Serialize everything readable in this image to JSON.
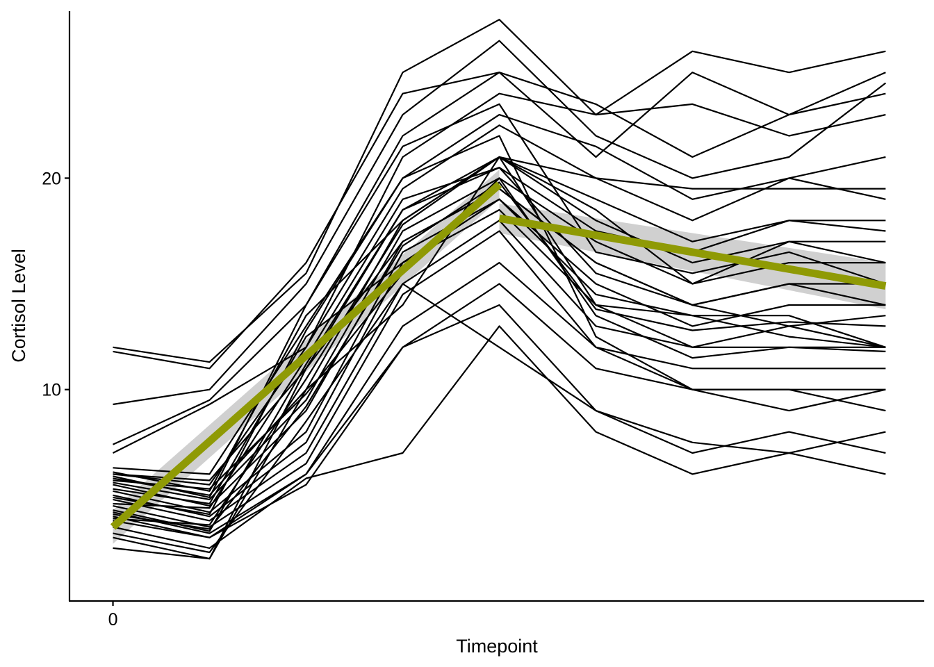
{
  "chart_data": {
    "type": "line",
    "title": "",
    "xlabel": "Timepoint",
    "ylabel": "Cortisol Level",
    "xlim": [
      -0.45,
      8.4
    ],
    "ylim": [
      0,
      27.9
    ],
    "x_ticks": [
      0
    ],
    "y_ticks": [
      10,
      20
    ],
    "x": [
      0,
      1,
      2,
      3,
      4,
      5,
      6,
      7,
      8
    ],
    "grid": false,
    "legend": "none",
    "colors": {
      "subject_lines": "#000000",
      "trend": "#8f9a05",
      "ci_band": "#c8c8c8"
    },
    "series": [
      {
        "values": [
          12.0,
          11.3,
          15.5,
          25.0,
          27.5,
          23.0,
          26.0,
          25.0,
          26.0
        ]
      },
      {
        "values": [
          11.8,
          11.0,
          16.0,
          24.0,
          25.0,
          21.0,
          25.0,
          23.0,
          25.0
        ]
      },
      {
        "values": [
          9.3,
          10.0,
          15.0,
          23.0,
          26.5,
          22.0,
          20.0,
          21.0,
          24.5
        ]
      },
      {
        "values": [
          7.4,
          9.5,
          14.0,
          22.0,
          25.0,
          23.5,
          21.0,
          23.0,
          24.0
        ]
      },
      {
        "values": [
          7.0,
          9.3,
          12.0,
          21.0,
          24.0,
          23.0,
          23.5,
          22.0,
          23.0
        ]
      },
      {
        "values": [
          6.3,
          6.0,
          13.0,
          20.0,
          23.0,
          21.5,
          19.0,
          20.0,
          21.0
        ]
      },
      {
        "values": [
          6.0,
          5.5,
          12.0,
          19.5,
          22.5,
          20.0,
          19.5,
          19.5,
          19.5
        ]
      },
      {
        "values": [
          6.0,
          5.7,
          11.0,
          18.5,
          21.0,
          19.0,
          17.0,
          18.0,
          18.0
        ]
      },
      {
        "values": [
          5.8,
          5.0,
          10.0,
          18.0,
          21.0,
          18.0,
          16.0,
          17.0,
          17.0
        ]
      },
      {
        "values": [
          5.6,
          4.8,
          9.5,
          17.5,
          20.0,
          17.0,
          15.0,
          16.0,
          16.0
        ]
      },
      {
        "values": [
          5.5,
          4.5,
          9.0,
          17.0,
          19.5,
          16.0,
          14.0,
          15.0,
          15.0
        ]
      },
      {
        "values": [
          5.2,
          4.2,
          8.0,
          16.5,
          19.0,
          15.0,
          13.0,
          14.0,
          14.0
        ]
      },
      {
        "values": [
          5.0,
          4.0,
          7.5,
          16.0,
          18.5,
          14.0,
          12.0,
          13.0,
          13.5
        ]
      },
      {
        "values": [
          4.8,
          3.8,
          7.0,
          15.0,
          18.0,
          13.0,
          12.0,
          12.0,
          12.0
        ]
      },
      {
        "values": [
          4.5,
          3.5,
          6.5,
          14.5,
          17.5,
          12.0,
          11.0,
          11.0,
          11.0
        ]
      },
      {
        "values": [
          4.2,
          3.2,
          6.0,
          12.0,
          15.0,
          11.0,
          10.0,
          10.0,
          10.0
        ]
      },
      {
        "values": [
          4.0,
          3.0,
          6.0,
          13.0,
          16.0,
          12.0,
          10.0,
          9.0,
          10.0
        ]
      },
      {
        "values": [
          3.8,
          3.0,
          5.5,
          12.0,
          14.0,
          9.0,
          7.0,
          8.0,
          7.0
        ]
      },
      {
        "values": [
          3.5,
          2.5,
          5.8,
          7.0,
          13.0,
          8.0,
          6.0,
          7.0,
          6.0
        ]
      },
      {
        "values": [
          3.2,
          2.3,
          8.5,
          15.0,
          12.0,
          9.0,
          7.5,
          7.0,
          8.0
        ]
      },
      {
        "values": [
          3.0,
          2.0,
          10.0,
          14.0,
          21.0,
          20.0,
          18.0,
          20.0,
          19.0
        ]
      },
      {
        "values": [
          2.5,
          2.0,
          11.0,
          17.0,
          19.5,
          16.0,
          14.0,
          13.0,
          12.0
        ]
      },
      {
        "values": [
          5.3,
          4.6,
          12.5,
          16.0,
          19.0,
          14.5,
          13.5,
          13.5,
          12.0
        ]
      },
      {
        "values": [
          6.1,
          5.2,
          13.5,
          18.0,
          21.0,
          18.5,
          15.0,
          17.0,
          16.0
        ]
      },
      {
        "values": [
          4.6,
          4.4,
          11.5,
          19.0,
          20.5,
          17.5,
          16.5,
          18.0,
          17.5
        ]
      },
      {
        "values": [
          3.9,
          3.6,
          10.5,
          17.8,
          21.0,
          14.0,
          13.5,
          12.5,
          12.0
        ]
      },
      {
        "values": [
          5.7,
          5.3,
          9.8,
          15.5,
          20.0,
          13.5,
          11.5,
          12.0,
          11.8
        ]
      },
      {
        "values": [
          4.9,
          4.1,
          12.8,
          20.0,
          22.0,
          12.5,
          10.0,
          10.0,
          9.0
        ]
      },
      {
        "values": [
          4.3,
          3.3,
          11.2,
          18.5,
          20.5,
          15.5,
          14.0,
          15.0,
          14.0
        ]
      },
      {
        "values": [
          5.9,
          4.9,
          14.0,
          21.5,
          23.5,
          16.5,
          15.5,
          16.5,
          15.0
        ]
      },
      {
        "values": [
          4.1,
          3.4,
          9.2,
          16.8,
          19.8,
          13.8,
          12.8,
          13.2,
          13.0
        ]
      }
    ],
    "trend": [
      {
        "x": [
          0,
          4
        ],
        "values": [
          3.5,
          19.7
        ],
        "ci_lower": [
          2.7,
          19.0
        ],
        "ci_upper": [
          4.3,
          20.4
        ]
      },
      {
        "x": [
          4,
          8
        ],
        "values": [
          18.1,
          14.9
        ],
        "ci_lower": [
          17.4,
          13.8
        ],
        "ci_upper": [
          18.8,
          16.0
        ]
      }
    ]
  }
}
